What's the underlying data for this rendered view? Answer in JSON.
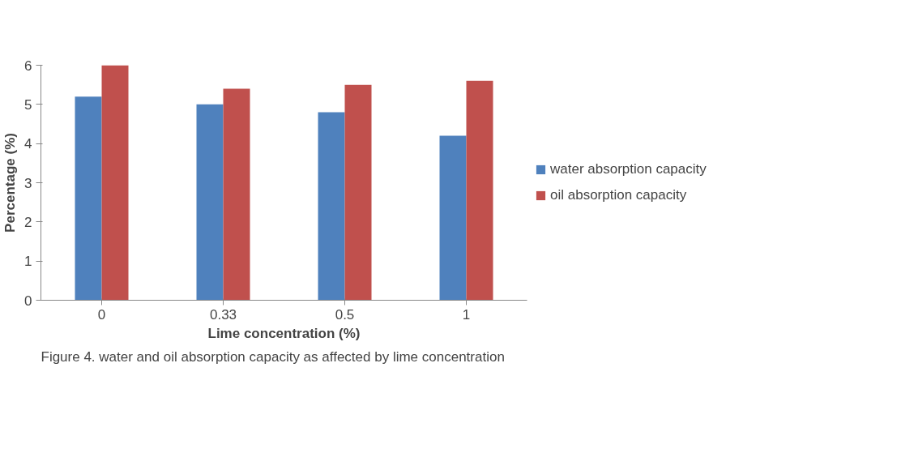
{
  "chart_data": {
    "type": "bar",
    "xlabel": "Lime concentration (%)",
    "ylabel": "Percentage (%)",
    "categories": [
      "0",
      "0.33",
      "0.5",
      "1"
    ],
    "series": [
      {
        "name": "water absorption capacity",
        "color": "#4f81bd",
        "values": [
          5.2,
          5.0,
          4.8,
          4.2
        ]
      },
      {
        "name": "oil absorption capacity",
        "color": "#c0504d",
        "values": [
          6.0,
          5.4,
          5.5,
          5.6
        ]
      }
    ],
    "ylim": [
      0,
      6
    ],
    "yticks": [
      0,
      1,
      2,
      3,
      4,
      5,
      6
    ],
    "grid": false,
    "legend": "right",
    "annotations": [
      "Figure 4. water and oil absorption capacity as affected by lime concentration"
    ]
  }
}
